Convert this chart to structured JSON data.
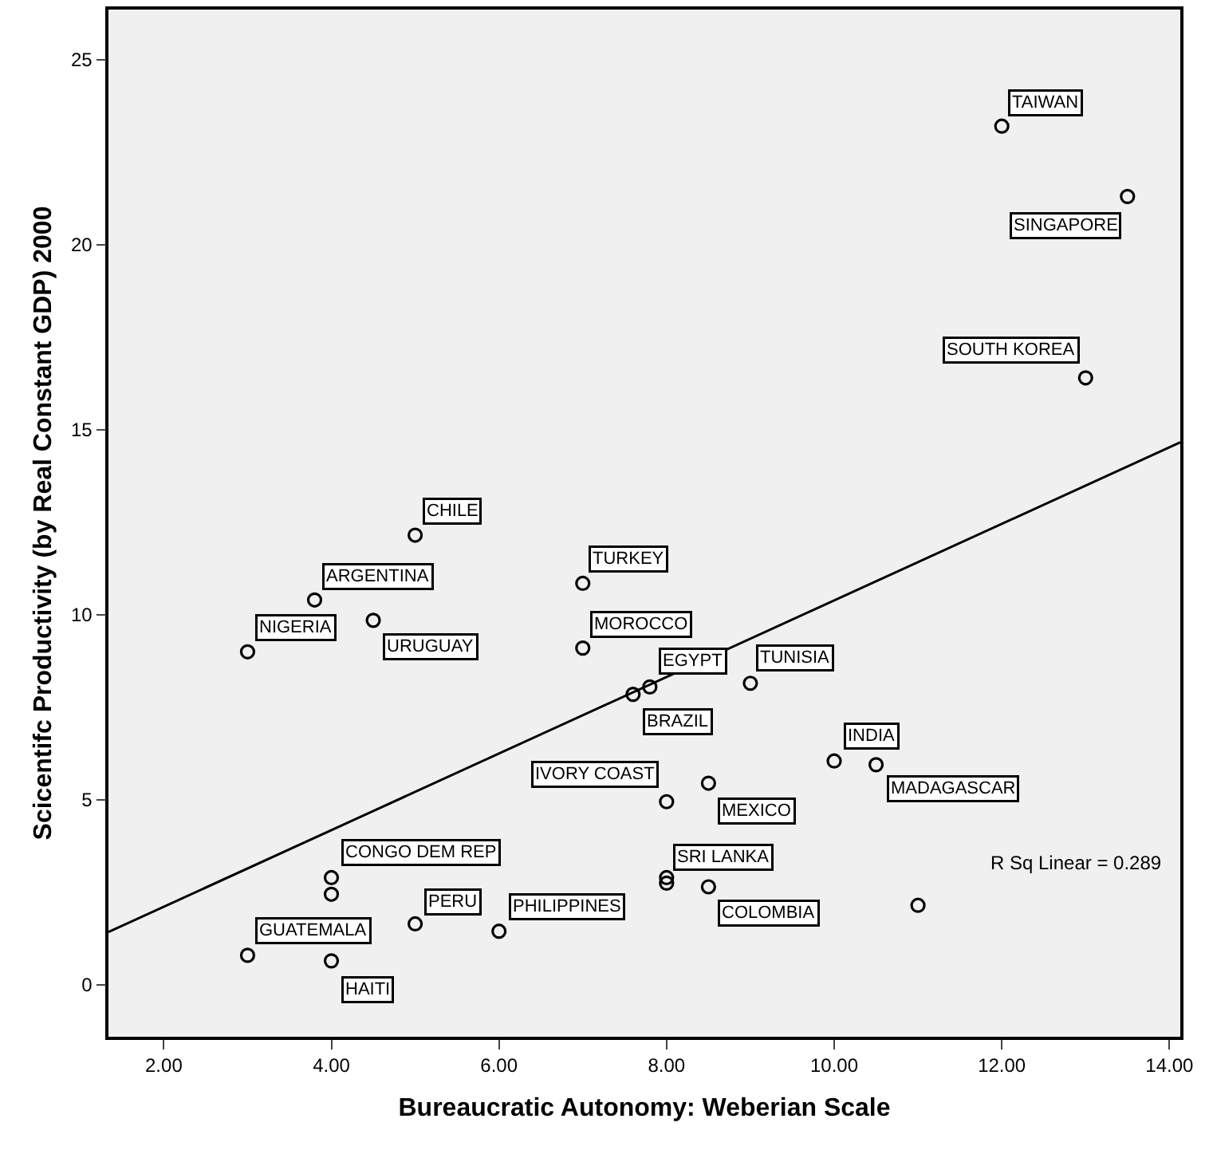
{
  "chart_data": {
    "type": "scatter",
    "xlabel": "Bureaucratic Autonomy: Weberian Scale",
    "ylabel": "Scicentifc Productivity (by Real Constant GDP) 2000",
    "x": [
      12,
      13.5,
      13,
      5,
      3.8,
      3,
      4.5,
      7,
      7,
      7.8,
      7.6,
      9,
      8,
      8.5,
      10,
      10.5,
      8,
      8.5,
      4,
      5,
      6,
      3,
      4,
      11,
      4,
      8
    ],
    "series": [
      {
        "marker": "circle",
        "color": "#000000",
        "values": [
          23.2,
          21.3,
          16.4,
          12.15,
          10.4,
          9.0,
          9.85,
          10.85,
          9.1,
          8.05,
          7.85,
          8.15,
          4.95,
          5.45,
          6.05,
          5.95,
          2.9,
          2.65,
          2.9,
          1.65,
          1.45,
          0.8,
          0.65,
          2.15,
          2.45,
          2.75
        ]
      },
      {
        "type": "line",
        "color": "#000000",
        "x": [
          1.34,
          14.13
        ],
        "values": [
          1.43,
          14.66
        ]
      }
    ],
    "annotations": [
      {
        "text": "TAIWAN",
        "x": 12,
        "y": 23.2
      },
      {
        "text": "SINGAPORE",
        "x": 13.5,
        "y": 21.3
      },
      {
        "text": "SOUTH KOREA",
        "x": 13,
        "y": 16.4
      },
      {
        "text": "CHILE",
        "x": 5,
        "y": 12.15
      },
      {
        "text": "ARGENTINA",
        "x": 3.8,
        "y": 10.4
      },
      {
        "text": "NIGERIA",
        "x": 3,
        "y": 9.0
      },
      {
        "text": "URUGUAY",
        "x": 4.5,
        "y": 9.85
      },
      {
        "text": "TURKEY",
        "x": 7,
        "y": 10.85
      },
      {
        "text": "MOROCCO",
        "x": 7,
        "y": 9.1
      },
      {
        "text": "EGYPT",
        "x": 7.8,
        "y": 8.05
      },
      {
        "text": "BRAZIL",
        "x": 7.6,
        "y": 7.85
      },
      {
        "text": "TUNISIA",
        "x": 9,
        "y": 8.15
      },
      {
        "text": "IVORY COAST",
        "x": 8,
        "y": 4.95
      },
      {
        "text": "MEXICO",
        "x": 8.5,
        "y": 5.45
      },
      {
        "text": "INDIA",
        "x": 10,
        "y": 6.05
      },
      {
        "text": "MADAGASCAR",
        "x": 10.5,
        "y": 5.95
      },
      {
        "text": "SRI LANKA",
        "x": 8,
        "y": 2.9
      },
      {
        "text": "COLOMBIA",
        "x": 8.5,
        "y": 2.65
      },
      {
        "text": "CONGO DEM REP",
        "x": 4,
        "y": 2.9
      },
      {
        "text": "PERU",
        "x": 5,
        "y": 1.65
      },
      {
        "text": "PHILIPPINES",
        "x": 6,
        "y": 1.45
      },
      {
        "text": "GUATEMALA",
        "x": 3,
        "y": 0.8
      },
      {
        "text": "HAITI",
        "x": 4,
        "y": 0.65
      },
      "R Sq Linear = 0.289"
    ],
    "xlim": [
      1.34,
      14.13
    ],
    "xticks": [
      {
        "value": 2,
        "label": "2.00"
      },
      {
        "value": 4,
        "label": "4.00"
      },
      {
        "value": 6,
        "label": "6.00"
      },
      {
        "value": 8,
        "label": "8.00"
      },
      {
        "value": 10,
        "label": "10.00"
      },
      {
        "value": 12,
        "label": "12.00"
      },
      {
        "value": 14,
        "label": "14.00"
      }
    ],
    "ylim": [
      -1.4,
      26.35
    ],
    "yticks": [
      0,
      5,
      10,
      15,
      20,
      25
    ],
    "grid": false,
    "line_style": "solid"
  }
}
